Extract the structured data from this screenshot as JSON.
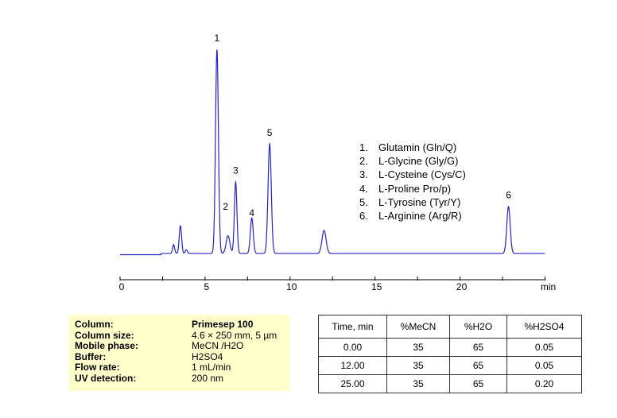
{
  "chart_data": {
    "type": "line",
    "title": "",
    "xlabel": "min",
    "ylabel": "",
    "xlim": [
      0,
      25
    ],
    "x_ticks": [
      0,
      5,
      10,
      15,
      20
    ],
    "x_tick_labels": [
      "0",
      "5",
      "10",
      "15",
      "20"
    ],
    "x_minor_ticks": [
      2.5,
      7.5,
      12.5,
      17.5,
      22.5,
      25
    ],
    "grid": false,
    "trace_color": "#2323c8",
    "baseline_rel": 0.0,
    "peaks": [
      {
        "label": "",
        "rt": 3.15,
        "height": 0.044,
        "width": 0.06
      },
      {
        "label": "",
        "rt": 3.55,
        "height": 0.136,
        "width": 0.07
      },
      {
        "label": "",
        "rt": 3.9,
        "height": 0.018,
        "width": 0.06
      },
      {
        "label": "1",
        "rt": 5.7,
        "height": 1.0,
        "width": 0.085
      },
      {
        "label": "2",
        "rt": 6.35,
        "height": 0.087,
        "width": 0.11
      },
      {
        "label": "3",
        "rt": 6.8,
        "height": 0.35,
        "width": 0.075
      },
      {
        "label": "4",
        "rt": 7.75,
        "height": 0.174,
        "width": 0.085
      },
      {
        "label": "5",
        "rt": 8.8,
        "height": 0.537,
        "width": 0.095
      },
      {
        "label": "",
        "rt": 12.0,
        "height": 0.113,
        "width": 0.12
      },
      {
        "label": "6",
        "rt": 22.85,
        "height": 0.23,
        "width": 0.1
      }
    ],
    "legend": [
      {
        "num": "1.",
        "name": "Glutamin (Gln/Q)"
      },
      {
        "num": "2.",
        "name": "L-Glycine (Gly/G)"
      },
      {
        "num": "3.",
        "name": "L-Cysteine (Cys/C)"
      },
      {
        "num": "4.",
        "name": "L-Proline Pro/p)"
      },
      {
        "num": "5.",
        "name": "L-Tyrosine (Tyr/Y)"
      },
      {
        "num": "6.",
        "name": "L-Arginine (Arg/R)"
      }
    ]
  },
  "conditions": [
    {
      "label": "Column:",
      "value": "Primesep 100",
      "bold": true
    },
    {
      "label": "Column size:",
      "value": "4.6 × 250 mm, 5 µm",
      "bold": false
    },
    {
      "label": "Mobile phase:",
      "value": "MeCN /H2O",
      "bold": false
    },
    {
      "label": "Buffer:",
      "value": "H2SO4",
      "bold": false
    },
    {
      "label": "Flow rate:",
      "value": "1 mL/min",
      "bold": false
    },
    {
      "label": "UV detection:",
      "value": "200 nm",
      "bold": false
    }
  ],
  "gradient_table": {
    "headers": [
      "Time, min",
      "%MeCN",
      "%H2O",
      "%H2SO4"
    ],
    "rows": [
      [
        "0.00",
        "35",
        "65",
        "0.05"
      ],
      [
        "12.00",
        "35",
        "65",
        "0.05"
      ],
      [
        "25.00",
        "35",
        "65",
        "0.20"
      ]
    ]
  }
}
